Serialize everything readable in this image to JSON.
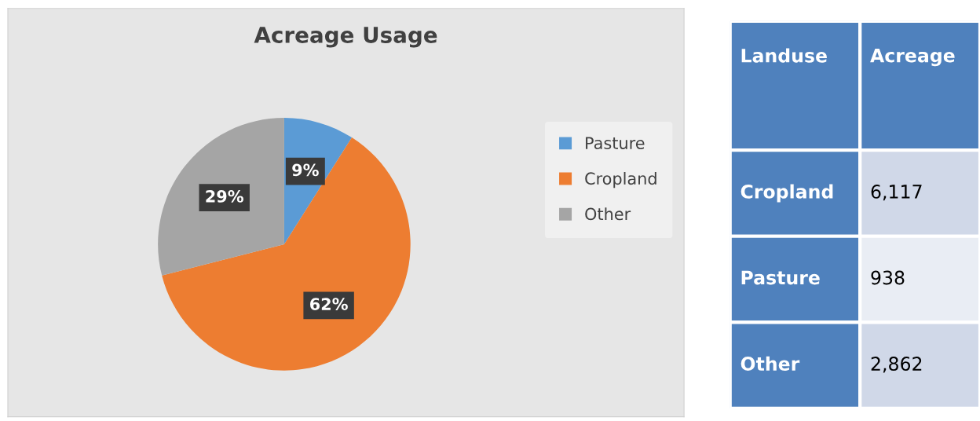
{
  "chart_data": [
    {
      "type": "pie",
      "title": "Acreage Usage",
      "categories": [
        "Pasture",
        "Cropland",
        "Other"
      ],
      "values": [
        9,
        62,
        29
      ],
      "colors": [
        "#5b9bd5",
        "#ed7d31",
        "#a5a5a5"
      ],
      "value_labels": [
        "9%",
        "62%",
        "29%"
      ],
      "legend": "right"
    },
    {
      "type": "other",
      "annotations": [
        "Landuse",
        "Acreage"
      ],
      "categories": [
        "Cropland",
        "Pasture",
        "Other"
      ],
      "value_labels": [
        "6,117",
        "938",
        "2,862"
      ]
    }
  ]
}
